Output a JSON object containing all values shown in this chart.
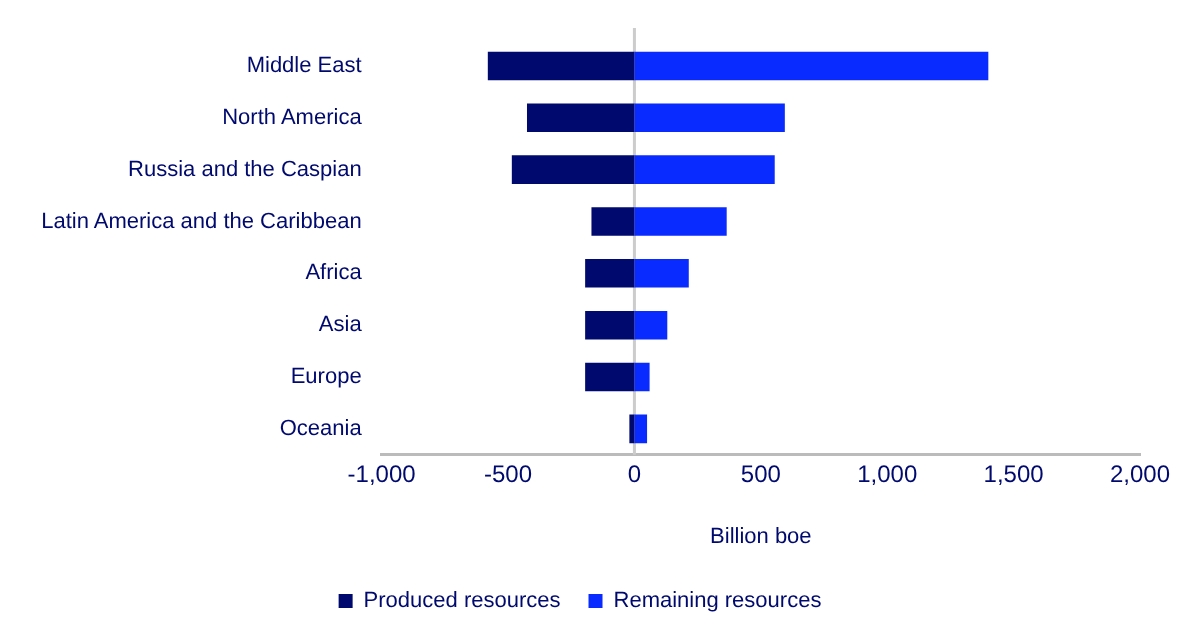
{
  "chart_data": {
    "type": "bar",
    "orientation": "horizontal",
    "stacked": true,
    "xlabel": "Billion boe",
    "categories": [
      "Middle East",
      "North America",
      "Russia and the Caspian",
      "Latin America and the Caribbean",
      "Africa",
      "Asia",
      "Europe",
      "Oceania"
    ],
    "series": [
      {
        "name": "Produced resources",
        "color": "#000a6e",
        "values": [
          -580,
          -425,
          -485,
          -170,
          -195,
          -195,
          -195,
          -20
        ]
      },
      {
        "name": "Remaining resources",
        "color": "#0a2bff",
        "values": [
          1400,
          595,
          555,
          365,
          215,
          130,
          60,
          50
        ]
      }
    ],
    "xlim": [
      -1000,
      2000
    ],
    "xticks": [
      {
        "value": -1000,
        "label": "-1,000"
      },
      {
        "value": -500,
        "label": "-500"
      },
      0,
      500,
      {
        "value": 1000,
        "label": "1,000"
      },
      {
        "value": 1500,
        "label": "1,500"
      },
      {
        "value": 2000,
        "label": "2,000"
      }
    ],
    "ref_lines": [
      {
        "axis": "x",
        "value": 0,
        "label": null,
        "color": "#cccccc"
      }
    ],
    "grid": false,
    "legend": "bottom"
  }
}
